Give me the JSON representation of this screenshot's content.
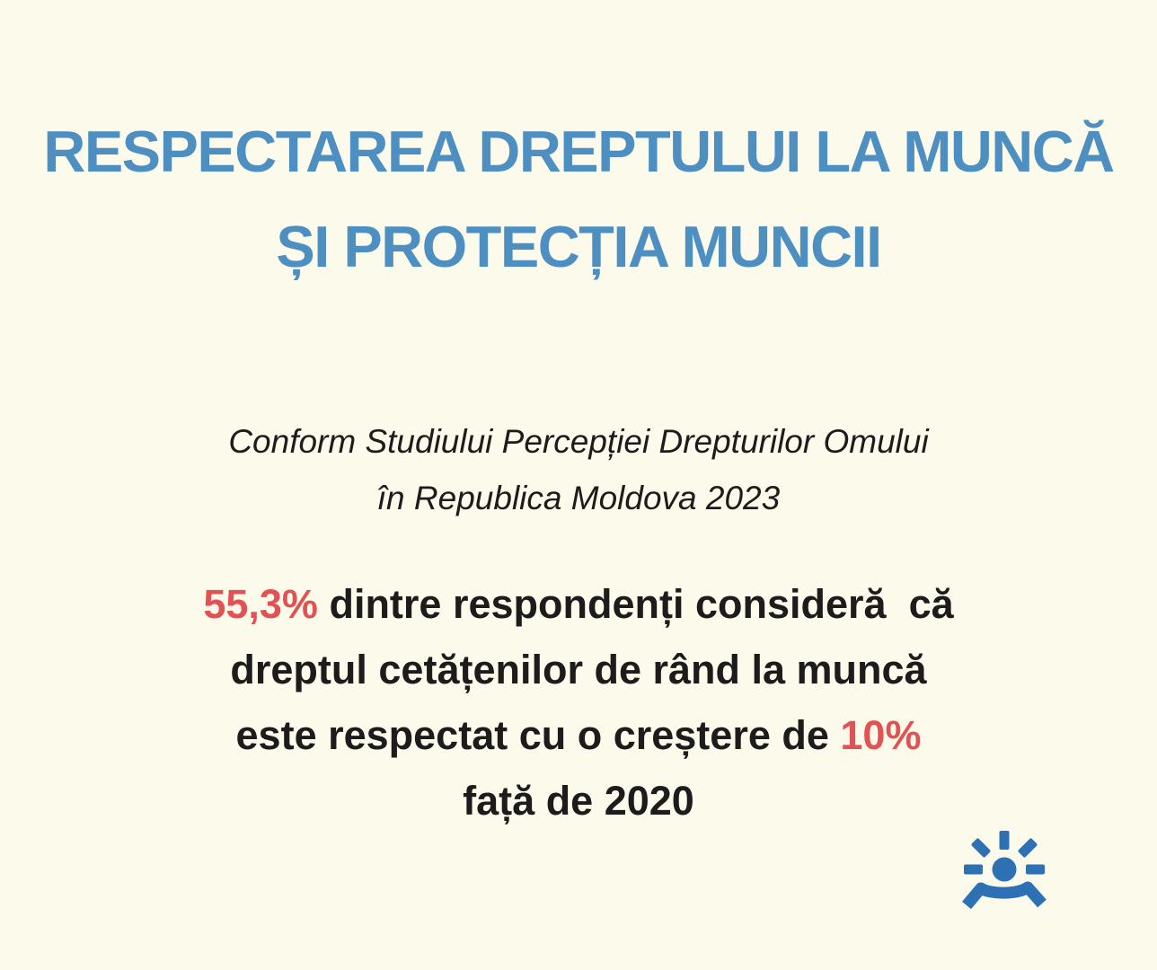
{
  "colors": {
    "background": "#FBFAEB",
    "title-blue": "#4E8FC1",
    "text-dark": "#1D1B1B",
    "highlight-red": "#E25253",
    "logo-blue": "#2E70B4"
  },
  "title": {
    "lines": [
      "RESPECTAREA DREPTULUI LA MUNCĂ",
      "ȘI PROTECȚIA MUNCII"
    ]
  },
  "subtitle": {
    "lines": [
      "Conform Studiului Percepției Drepturilor Omului",
      "în Republica Moldova 2023"
    ]
  },
  "statistic": {
    "lines": [
      [
        {
          "t": "55,3%",
          "hl": true
        },
        {
          "t": " dintre respondenți consideră  că",
          "hl": false
        }
      ],
      [
        {
          "t": "dreptul cetățenilor de rând la muncă",
          "hl": false
        }
      ],
      [
        {
          "t": "este respectat cu o creștere de ",
          "hl": false
        },
        {
          "t": "10%",
          "hl": true
        }
      ],
      [
        {
          "t": "față de 2020",
          "hl": false
        }
      ]
    ],
    "highlighted_values": [
      "55,3%",
      "10%"
    ]
  },
  "logo": {
    "icon": "sun-eye-icon"
  }
}
